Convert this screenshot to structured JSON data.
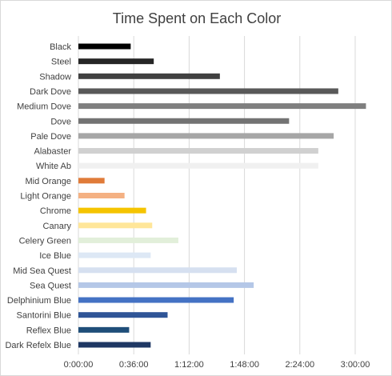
{
  "chart_data": {
    "type": "bar",
    "orientation": "horizontal",
    "title": "Time Spent on Each Color",
    "xlabel": "",
    "ylabel": "",
    "x_unit": "h:mm:ss",
    "xlim": [
      "0:00:00",
      "3:00:00"
    ],
    "x_ticks": [
      "0:00:00",
      "0:36:00",
      "1:12:00",
      "1:48:00",
      "2:24:00",
      "3:00:00"
    ],
    "grid": "vertical",
    "legend": "none",
    "categories": [
      "Black",
      "Steel",
      "Shadow",
      "Dark Dove",
      "Medium Dove",
      "Dove",
      "Pale Dove",
      "Alabaster",
      "White Ab",
      "Mid Orange",
      "Light Orange",
      "Chrome",
      "Canary",
      "Celery Green",
      "Ice Blue",
      "Mid Sea Quest",
      "Sea Quest",
      "Delphinium Blue",
      "Santorini Blue",
      "Reflex Blue",
      "Dark Refelx Blue"
    ],
    "values": [
      "0:34:00",
      "0:49:00",
      "1:32:00",
      "2:49:00",
      "3:07:00",
      "2:17:00",
      "2:46:00",
      "2:36:00",
      "2:36:00",
      "0:17:00",
      "0:30:00",
      "0:44:00",
      "0:48:00",
      "1:05:00",
      "0:47:00",
      "1:43:00",
      "1:54:00",
      "1:41:00",
      "0:58:00",
      "0:33:00",
      "0:47:00"
    ],
    "colors": [
      "#000000",
      "#262626",
      "#404040",
      "#595959",
      "#7f7f7f",
      "#737373",
      "#a6a6a6",
      "#d0d0d0",
      "#f0f0f0",
      "#e07b39",
      "#f4b183",
      "#f5c400",
      "#ffe699",
      "#e2efda",
      "#dde8f5",
      "#d6e0f0",
      "#b4c7e7",
      "#4472c4",
      "#2f5597",
      "#1f4e79",
      "#1f3864"
    ]
  }
}
